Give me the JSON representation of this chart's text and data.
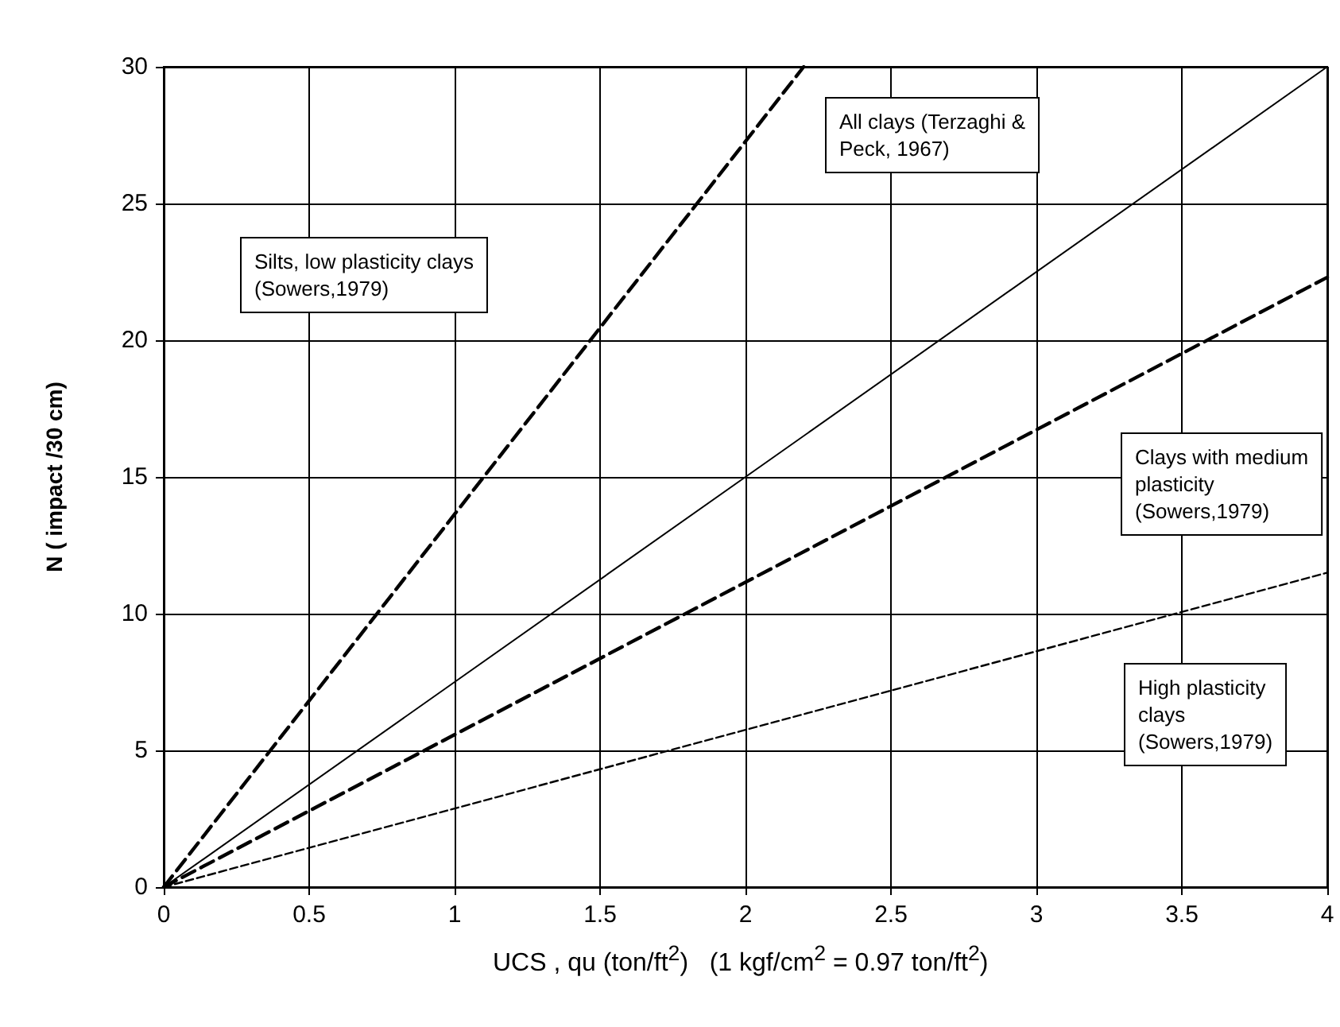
{
  "chart_data": {
    "type": "line",
    "xlabel": "UCS , qu (ton/ft$^{2}$)   (1 kgf/cm$^{2}$ = 0.97 ton/ft$^{2}$)",
    "ylabel": "N ( impact /30 cm)",
    "xlim": [
      0,
      4
    ],
    "xticks": [
      0,
      0.5,
      1,
      1.5,
      2,
      2.5,
      3,
      3.5,
      4
    ],
    "ylim": [
      0,
      30
    ],
    "yticks": [
      0,
      5,
      10,
      15,
      20,
      25,
      30
    ],
    "grid": true,
    "marker": "none",
    "annotations": [
      "Silts, low plasticity clays\n(Sowers,1979)",
      "All clays (Terzaghi &\nPeck, 1967)",
      "Clays with medium\nplasticity\n(Sowers,1979)",
      "High plasticity\nclays\n(Sowers,1979)"
    ],
    "series": [
      {
        "color": "#000000",
        "x": [
          0,
          2.2
        ],
        "values": [
          0,
          30
        ],
        "line_style": "dashed"
      },
      {
        "color": "#000000",
        "x": [
          0,
          4
        ],
        "values": [
          0,
          30
        ],
        "line_style": "solid"
      },
      {
        "color": "#000000",
        "x": [
          0,
          4
        ],
        "values": [
          0,
          22.3
        ],
        "line_style": "dashed"
      },
      {
        "color": "#000000",
        "x": [
          0,
          4
        ],
        "values": [
          0,
          11.5
        ],
        "line_style": "dashed"
      }
    ]
  }
}
